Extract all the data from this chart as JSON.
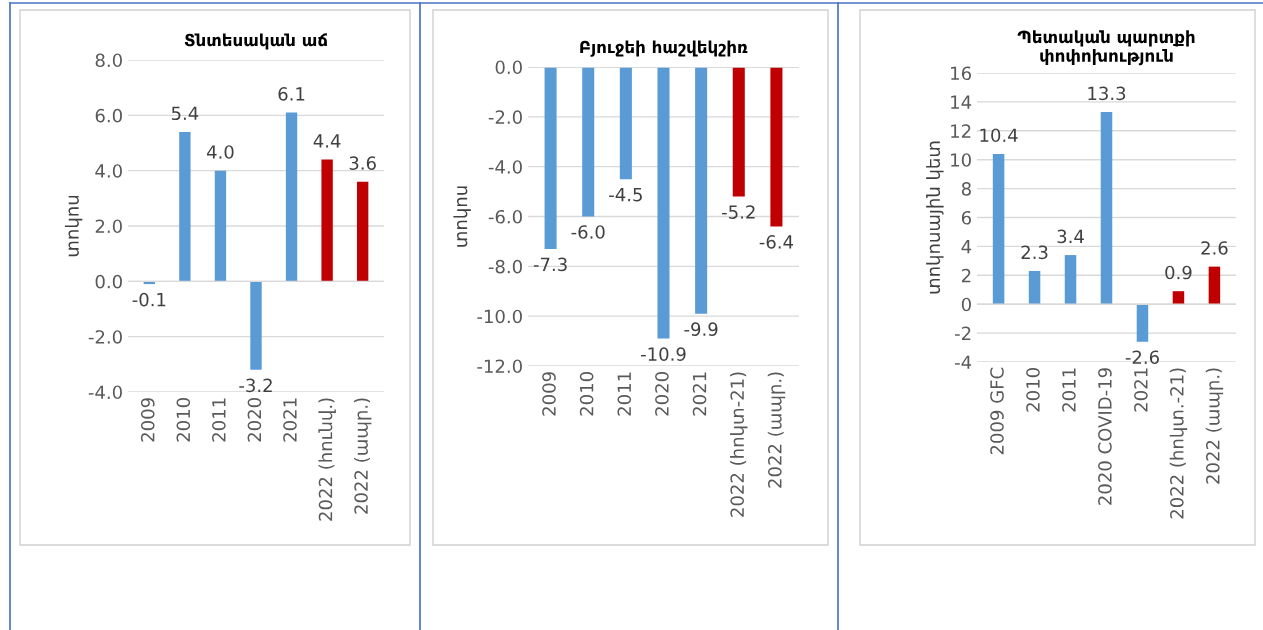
{
  "chart_data": [
    {
      "type": "bar",
      "title": "Տնտեսական աճ",
      "ylabel": "տոկոս",
      "categories": [
        "2009",
        "2010",
        "2011",
        "2020",
        "2021",
        "2022 (հունվ.)",
        "2022 (ապր.)"
      ],
      "values": [
        -0.1,
        5.4,
        4.0,
        -3.2,
        6.1,
        4.4,
        3.6
      ],
      "colors": [
        "#5b9bd5",
        "#5b9bd5",
        "#5b9bd5",
        "#5b9bd5",
        "#5b9bd5",
        "#c00000",
        "#c00000"
      ],
      "value_labels": [
        "-0.1",
        "5.4",
        "4.0",
        "-3.2",
        "6.1",
        "4.4",
        "3.6"
      ],
      "ylim": [
        -4,
        8
      ],
      "yticks": [
        {
          "value": -4,
          "label": "-4.0"
        },
        {
          "value": -2,
          "label": "-2.0"
        },
        {
          "value": 0,
          "label": "0.0"
        },
        {
          "value": 2,
          "label": "2.0"
        },
        {
          "value": 4,
          "label": "4.0"
        },
        {
          "value": 6,
          "label": "6.0"
        },
        {
          "value": 8,
          "label": "8.0"
        }
      ],
      "grid": "y",
      "legend": false
    },
    {
      "type": "bar",
      "title": "Բյուջեի հաշվեկշիռ",
      "ylabel": "տոկոս",
      "categories": [
        "2009",
        "2010",
        "2011",
        "2020",
        "2021",
        "2022 (հոկտ-21)",
        "2022 (ապր.)"
      ],
      "values": [
        -7.3,
        -6.0,
        -4.5,
        -10.9,
        -9.9,
        -5.2,
        -6.4
      ],
      "colors": [
        "#5b9bd5",
        "#5b9bd5",
        "#5b9bd5",
        "#5b9bd5",
        "#5b9bd5",
        "#c00000",
        "#c00000"
      ],
      "value_labels": [
        "-7.3",
        "-6.0",
        "-4.5",
        "-10.9",
        "-9.9",
        "-5.2",
        "-6.4"
      ],
      "ylim": [
        -12,
        0
      ],
      "yticks": [
        {
          "value": -12,
          "label": "-12.0"
        },
        {
          "value": -10,
          "label": "-10.0"
        },
        {
          "value": -8,
          "label": "-8.0"
        },
        {
          "value": -6,
          "label": "-6.0"
        },
        {
          "value": -4,
          "label": "-4.0"
        },
        {
          "value": -2,
          "label": "-2.0"
        },
        {
          "value": 0,
          "label": "0.0"
        }
      ],
      "grid": "y",
      "legend": false
    },
    {
      "type": "bar",
      "title": "Պետական պարտքի փոփոխություն",
      "ylabel": "տոկոսային կետ",
      "categories": [
        "2009 GFC",
        "2010",
        "2011",
        "2020 COVID-19",
        "2021",
        "2022 (հոկտ.-21)",
        "2022 (ապր.)"
      ],
      "values": [
        10.4,
        2.3,
        3.4,
        13.3,
        -2.6,
        0.9,
        2.6
      ],
      "colors": [
        "#5b9bd5",
        "#5b9bd5",
        "#5b9bd5",
        "#5b9bd5",
        "#5b9bd5",
        "#c00000",
        "#c00000"
      ],
      "value_labels": [
        "10.4",
        "2.3",
        "3.4",
        "13.3",
        "-2.6",
        "0.9",
        "2.6"
      ],
      "ylim": [
        -4,
        16
      ],
      "yticks": [
        -4,
        -2,
        0,
        2,
        4,
        6,
        8,
        10,
        12,
        14,
        16
      ],
      "grid": "y",
      "legend": false
    }
  ]
}
